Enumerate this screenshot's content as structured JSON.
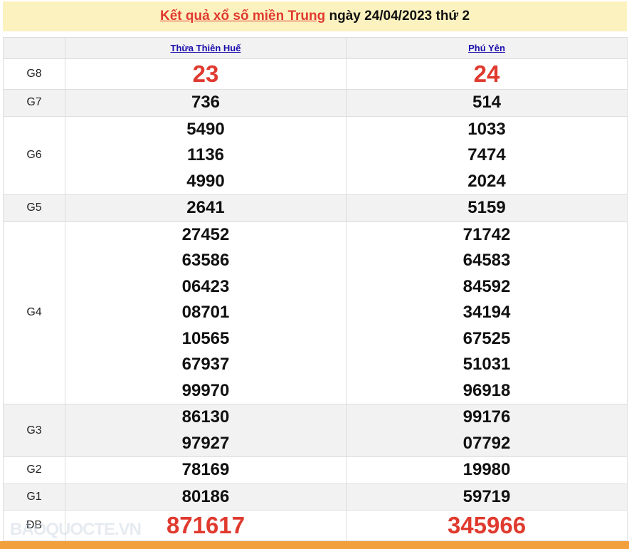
{
  "title": {
    "link": "Kết quả xổ số miền Trung",
    "rest": " ngày 24/04/2023 thứ 2"
  },
  "provinces": [
    "Thừa Thiên Huế",
    "Phú Yên"
  ],
  "prizes": [
    {
      "label": "G8",
      "big": true,
      "values": [
        [
          "23"
        ],
        [
          "24"
        ]
      ]
    },
    {
      "label": "G7",
      "values": [
        [
          "736"
        ],
        [
          "514"
        ]
      ]
    },
    {
      "label": "G6",
      "values": [
        [
          "5490",
          "1136",
          "4990"
        ],
        [
          "1033",
          "7474",
          "2024"
        ]
      ]
    },
    {
      "label": "G5",
      "values": [
        [
          "2641"
        ],
        [
          "5159"
        ]
      ]
    },
    {
      "label": "G4",
      "values": [
        [
          "27452",
          "63586",
          "06423",
          "08701",
          "10565",
          "67937",
          "99970"
        ],
        [
          "71742",
          "64583",
          "84592",
          "34194",
          "67525",
          "51031",
          "96918"
        ]
      ]
    },
    {
      "label": "G3",
      "values": [
        [
          "86130",
          "97927"
        ],
        [
          "99176",
          "07792"
        ]
      ]
    },
    {
      "label": "G2",
      "values": [
        [
          "78169"
        ],
        [
          "19980"
        ]
      ]
    },
    {
      "label": "G1",
      "values": [
        [
          "80186"
        ],
        [
          "59719"
        ]
      ]
    },
    {
      "label": "ĐB",
      "big": true,
      "values": [
        [
          "871617"
        ],
        [
          "345966"
        ]
      ]
    }
  ],
  "watermark": "BAOQUOCTE.VN"
}
